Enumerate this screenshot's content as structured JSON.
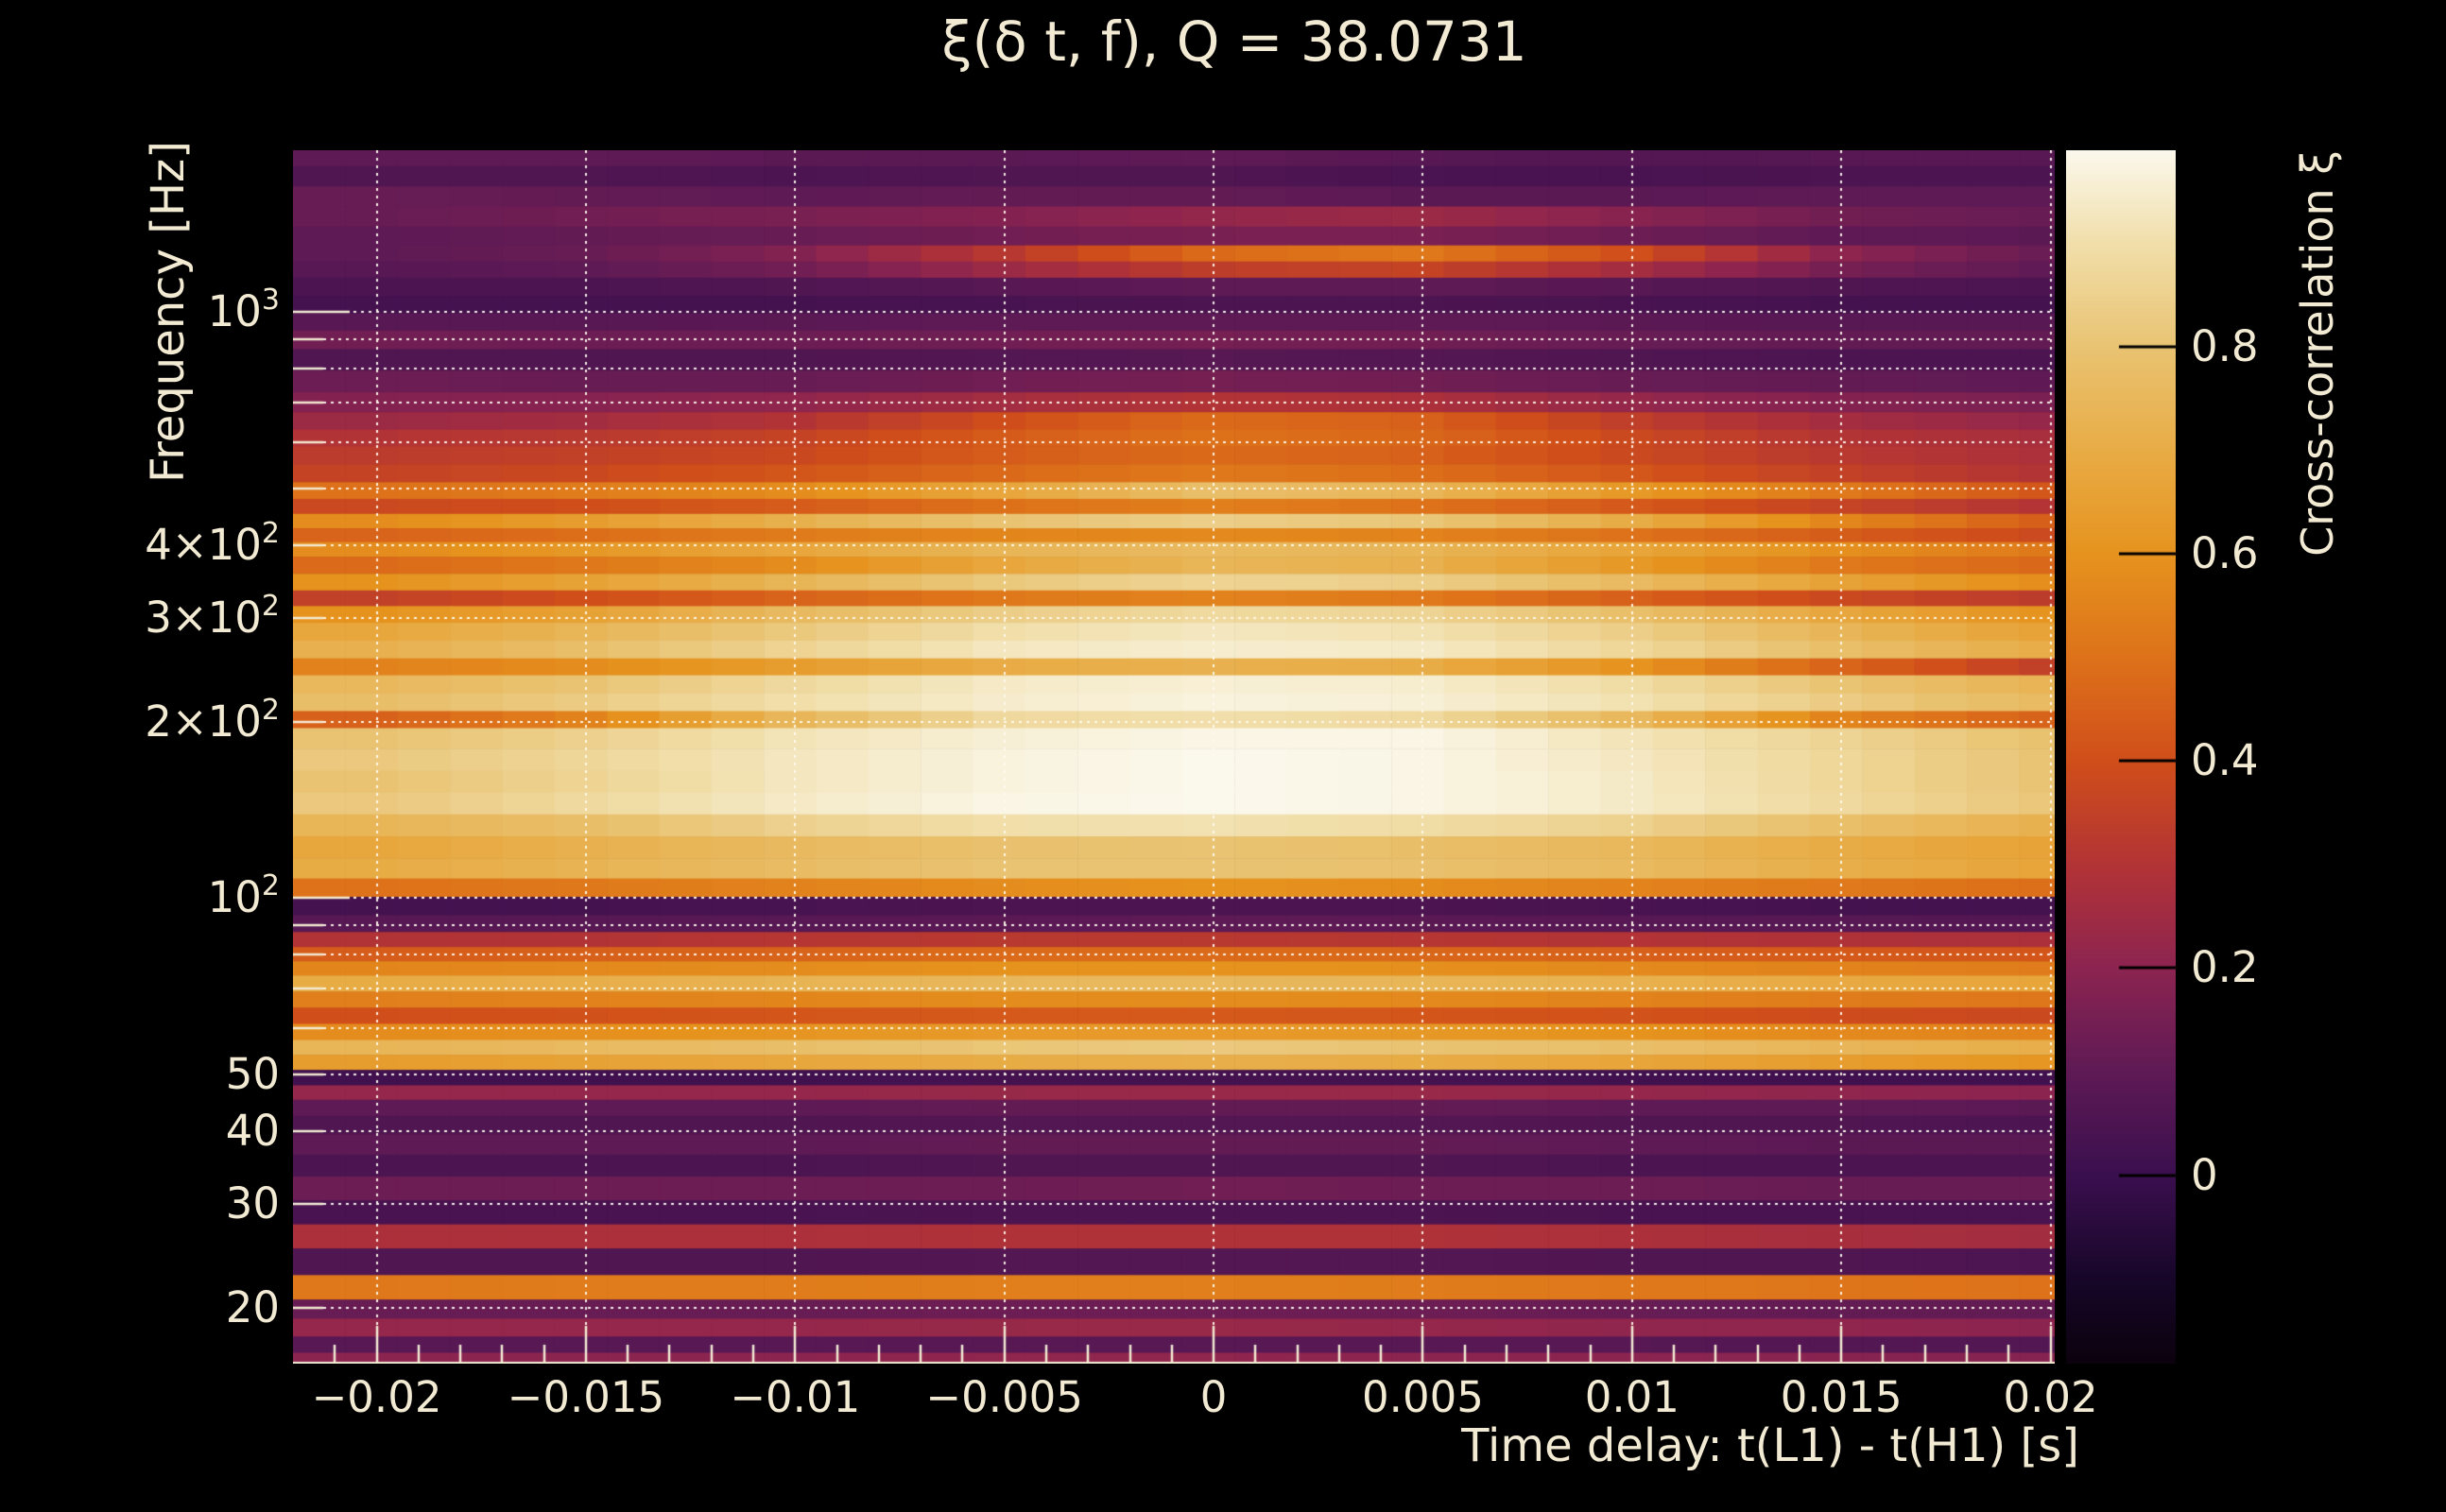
{
  "page": {
    "background": "#000000",
    "text_color": "#f2ead2"
  },
  "chart_data": {
    "type": "heatmap",
    "title": "ξ(δ t, f), Q = 38.0731",
    "xlabel": "Time delay: t(L1) - t(H1) [s]",
    "ylabel": "Frequency [Hz]",
    "colorbar_label": "Cross-correlation ξ",
    "x_scale": "linear",
    "y_scale": "log",
    "x_range_s": [
      -0.022,
      0.0201
    ],
    "y_range_hz": [
      16.04,
      1888
    ],
    "color_range": [
      -0.182,
      0.99
    ],
    "grid_style": "dotted",
    "xticks": [
      {
        "value": -0.02,
        "label": "−0.02"
      },
      {
        "value": -0.015,
        "label": "−0.015"
      },
      {
        "value": -0.01,
        "label": "−0.01"
      },
      {
        "value": -0.005,
        "label": "−0.005"
      },
      {
        "value": 0,
        "label": "0"
      },
      {
        "value": 0.005,
        "label": "0.005"
      },
      {
        "value": 0.01,
        "label": "0.01"
      },
      {
        "value": 0.015,
        "label": "0.015"
      },
      {
        "value": 0.02,
        "label": "0.02"
      }
    ],
    "yticks": [
      {
        "value": 1000,
        "label": "10^3"
      },
      {
        "value": 400,
        "label": "4×10^2"
      },
      {
        "value": 300,
        "label": "3×10^2"
      },
      {
        "value": 200,
        "label": "2×10^2"
      },
      {
        "value": 100,
        "label": "10^2"
      },
      {
        "value": 50,
        "label": "50"
      },
      {
        "value": 40,
        "label": "40"
      },
      {
        "value": 30,
        "label": "30"
      },
      {
        "value": 20,
        "label": "20"
      }
    ],
    "y_grid_hz": [
      20,
      30,
      40,
      50,
      60,
      70,
      80,
      90,
      100,
      200,
      300,
      400,
      500,
      600,
      700,
      800,
      900,
      1000
    ],
    "x_minor_tick_step_s": 0.001,
    "colorbar_ticks": [
      {
        "value": 0.8,
        "label": "0.8"
      },
      {
        "value": 0.6,
        "label": "0.6"
      },
      {
        "value": 0.4,
        "label": "0.4"
      },
      {
        "value": 0.2,
        "label": "0.2"
      },
      {
        "value": 0,
        "label": "0"
      }
    ],
    "colormap_stops": [
      [
        0.0,
        "#0b020d"
      ],
      [
        0.07,
        "#170629"
      ],
      [
        0.155,
        "#3a0f4e"
      ],
      [
        0.24,
        "#5e1a55"
      ],
      [
        0.326,
        "#8c2450"
      ],
      [
        0.41,
        "#b23336"
      ],
      [
        0.497,
        "#d04e1a"
      ],
      [
        0.58,
        "#dd711a"
      ],
      [
        0.667,
        "#e6931e"
      ],
      [
        0.75,
        "#e8ab44"
      ],
      [
        0.838,
        "#e9c372"
      ],
      [
        0.925,
        "#f1dfab"
      ],
      [
        1.0,
        "#fbf8ec"
      ]
    ],
    "x_columns_s": [
      -0.02,
      -0.015,
      -0.01,
      -0.005,
      0,
      0.005,
      0.01,
      0.015,
      0.02
    ],
    "rows": [
      {
        "f_hz": 1850,
        "xi": [
          0.1,
          0.1,
          0.09,
          0.09,
          0.1,
          0.08,
          0.07,
          0.08,
          0.08
        ]
      },
      {
        "f_hz": 1700,
        "xi": [
          0.06,
          0.06,
          0.05,
          0.06,
          0.06,
          0.04,
          0.04,
          0.05,
          0.05
        ]
      },
      {
        "f_hz": 1580,
        "xi": [
          0.12,
          0.11,
          0.1,
          0.11,
          0.11,
          0.09,
          0.09,
          0.1,
          0.1
        ]
      },
      {
        "f_hz": 1450,
        "xi": [
          0.12,
          0.14,
          0.16,
          0.18,
          0.22,
          0.24,
          0.19,
          0.14,
          0.12
        ]
      },
      {
        "f_hz": 1350,
        "xi": [
          0.1,
          0.11,
          0.12,
          0.14,
          0.16,
          0.16,
          0.13,
          0.1,
          0.09
        ]
      },
      {
        "f_hz": 1250,
        "xi": [
          0.1,
          0.12,
          0.18,
          0.32,
          0.48,
          0.52,
          0.4,
          0.2,
          0.12
        ]
      },
      {
        "f_hz": 1190,
        "xi": [
          0.08,
          0.1,
          0.14,
          0.24,
          0.34,
          0.36,
          0.26,
          0.15,
          0.1
        ]
      },
      {
        "f_hz": 1100,
        "xi": [
          0.05,
          0.05,
          0.06,
          0.08,
          0.1,
          0.1,
          0.08,
          0.06,
          0.05
        ]
      },
      {
        "f_hz": 1030,
        "xi": [
          0.03,
          0.03,
          0.03,
          0.04,
          0.05,
          0.05,
          0.04,
          0.03,
          0.03
        ]
      },
      {
        "f_hz": 960,
        "xi": [
          0.08,
          0.08,
          0.09,
          0.1,
          0.1,
          0.1,
          0.09,
          0.08,
          0.08
        ]
      },
      {
        "f_hz": 900,
        "xi": [
          0.14,
          0.13,
          0.13,
          0.14,
          0.15,
          0.14,
          0.12,
          0.11,
          0.11
        ]
      },
      {
        "f_hz": 830,
        "xi": [
          0.06,
          0.06,
          0.06,
          0.07,
          0.08,
          0.07,
          0.06,
          0.05,
          0.05
        ]
      },
      {
        "f_hz": 760,
        "xi": [
          0.13,
          0.12,
          0.12,
          0.14,
          0.15,
          0.14,
          0.12,
          0.11,
          0.1
        ]
      },
      {
        "f_hz": 700,
        "xi": [
          0.18,
          0.19,
          0.21,
          0.26,
          0.3,
          0.28,
          0.22,
          0.18,
          0.16
        ]
      },
      {
        "f_hz": 650,
        "xi": [
          0.24,
          0.26,
          0.3,
          0.4,
          0.48,
          0.45,
          0.34,
          0.26,
          0.22
        ]
      },
      {
        "f_hz": 610,
        "xi": [
          0.3,
          0.32,
          0.36,
          0.44,
          0.5,
          0.47,
          0.38,
          0.3,
          0.27
        ]
      },
      {
        "f_hz": 570,
        "xi": [
          0.33,
          0.35,
          0.38,
          0.44,
          0.48,
          0.45,
          0.38,
          0.32,
          0.28
        ]
      },
      {
        "f_hz": 530,
        "xi": [
          0.36,
          0.38,
          0.42,
          0.48,
          0.52,
          0.49,
          0.42,
          0.35,
          0.3
        ]
      },
      {
        "f_hz": 495,
        "xi": [
          0.5,
          0.53,
          0.58,
          0.68,
          0.78,
          0.74,
          0.62,
          0.52,
          0.42
        ]
      },
      {
        "f_hz": 465,
        "xi": [
          0.38,
          0.4,
          0.44,
          0.5,
          0.54,
          0.5,
          0.43,
          0.36,
          0.3
        ]
      },
      {
        "f_hz": 440,
        "xi": [
          0.58,
          0.64,
          0.72,
          0.8,
          0.84,
          0.81,
          0.7,
          0.56,
          0.44
        ]
      },
      {
        "f_hz": 415,
        "xi": [
          0.46,
          0.49,
          0.53,
          0.56,
          0.57,
          0.55,
          0.5,
          0.44,
          0.38
        ]
      },
      {
        "f_hz": 395,
        "xi": [
          0.58,
          0.62,
          0.68,
          0.74,
          0.76,
          0.74,
          0.67,
          0.59,
          0.52
        ]
      },
      {
        "f_hz": 370,
        "xi": [
          0.48,
          0.52,
          0.58,
          0.68,
          0.74,
          0.72,
          0.62,
          0.52,
          0.47
        ]
      },
      {
        "f_hz": 345,
        "xi": [
          0.6,
          0.66,
          0.74,
          0.82,
          0.86,
          0.84,
          0.76,
          0.66,
          0.58
        ]
      },
      {
        "f_hz": 325,
        "xi": [
          0.35,
          0.4,
          0.46,
          0.52,
          0.55,
          0.52,
          0.45,
          0.38,
          0.33
        ]
      },
      {
        "f_hz": 305,
        "xi": [
          0.6,
          0.66,
          0.76,
          0.84,
          0.88,
          0.86,
          0.78,
          0.68,
          0.6
        ]
      },
      {
        "f_hz": 285,
        "xi": [
          0.68,
          0.74,
          0.82,
          0.9,
          0.93,
          0.91,
          0.84,
          0.74,
          0.66
        ]
      },
      {
        "f_hz": 265,
        "xi": [
          0.72,
          0.78,
          0.86,
          0.93,
          0.95,
          0.94,
          0.87,
          0.78,
          0.7
        ]
      },
      {
        "f_hz": 248,
        "xi": [
          0.55,
          0.58,
          0.64,
          0.7,
          0.72,
          0.7,
          0.6,
          0.46,
          0.34
        ]
      },
      {
        "f_hz": 232,
        "xi": [
          0.75,
          0.8,
          0.88,
          0.94,
          0.96,
          0.95,
          0.89,
          0.8,
          0.73
        ]
      },
      {
        "f_hz": 215,
        "xi": [
          0.78,
          0.83,
          0.9,
          0.95,
          0.97,
          0.96,
          0.91,
          0.83,
          0.76
        ]
      },
      {
        "f_hz": 202,
        "xi": [
          0.45,
          0.55,
          0.75,
          0.88,
          0.9,
          0.88,
          0.75,
          0.55,
          0.45
        ]
      },
      {
        "f_hz": 188,
        "xi": [
          0.8,
          0.85,
          0.92,
          0.96,
          0.98,
          0.98,
          0.92,
          0.86,
          0.79
        ]
      },
      {
        "f_hz": 172,
        "xi": [
          0.82,
          0.87,
          0.93,
          0.97,
          0.99,
          0.98,
          0.93,
          0.87,
          0.8
        ]
      },
      {
        "f_hz": 158,
        "xi": [
          0.8,
          0.86,
          0.93,
          0.97,
          0.99,
          0.98,
          0.94,
          0.87,
          0.8
        ]
      },
      {
        "f_hz": 145,
        "xi": [
          0.82,
          0.88,
          0.94,
          0.98,
          0.99,
          0.98,
          0.94,
          0.88,
          0.81
        ]
      },
      {
        "f_hz": 133,
        "xi": [
          0.74,
          0.78,
          0.85,
          0.9,
          0.91,
          0.89,
          0.85,
          0.78,
          0.72
        ]
      },
      {
        "f_hz": 122,
        "xi": [
          0.68,
          0.72,
          0.76,
          0.79,
          0.8,
          0.78,
          0.75,
          0.7,
          0.66
        ]
      },
      {
        "f_hz": 112,
        "xi": [
          0.7,
          0.73,
          0.77,
          0.8,
          0.8,
          0.79,
          0.76,
          0.71,
          0.67
        ]
      },
      {
        "f_hz": 104,
        "xi": [
          0.5,
          0.52,
          0.55,
          0.58,
          0.6,
          0.58,
          0.55,
          0.52,
          0.49
        ]
      },
      {
        "f_hz": 97,
        "xi": [
          0.03,
          0.03,
          0.04,
          0.05,
          0.05,
          0.05,
          0.04,
          0.03,
          0.03
        ]
      },
      {
        "f_hz": 90,
        "xi": [
          0.08,
          0.08,
          0.08,
          0.09,
          0.1,
          0.09,
          0.08,
          0.08,
          0.07
        ]
      },
      {
        "f_hz": 85,
        "xi": [
          0.3,
          0.3,
          0.31,
          0.32,
          0.32,
          0.31,
          0.3,
          0.29,
          0.28
        ]
      },
      {
        "f_hz": 80,
        "xi": [
          0.44,
          0.45,
          0.46,
          0.48,
          0.48,
          0.47,
          0.45,
          0.43,
          0.42
        ]
      },
      {
        "f_hz": 76,
        "xi": [
          0.56,
          0.57,
          0.58,
          0.6,
          0.6,
          0.59,
          0.57,
          0.55,
          0.53
        ]
      },
      {
        "f_hz": 71.5,
        "xi": [
          0.7,
          0.71,
          0.73,
          0.75,
          0.75,
          0.74,
          0.72,
          0.69,
          0.67
        ]
      },
      {
        "f_hz": 67,
        "xi": [
          0.54,
          0.55,
          0.56,
          0.58,
          0.58,
          0.57,
          0.55,
          0.53,
          0.51
        ]
      },
      {
        "f_hz": 63,
        "xi": [
          0.4,
          0.41,
          0.42,
          0.43,
          0.43,
          0.42,
          0.41,
          0.39,
          0.38
        ]
      },
      {
        "f_hz": 59,
        "xi": [
          0.58,
          0.59,
          0.61,
          0.63,
          0.63,
          0.62,
          0.6,
          0.57,
          0.55
        ]
      },
      {
        "f_hz": 55.5,
        "xi": [
          0.74,
          0.76,
          0.78,
          0.81,
          0.82,
          0.8,
          0.78,
          0.74,
          0.71
        ]
      },
      {
        "f_hz": 52.5,
        "xi": [
          0.64,
          0.66,
          0.68,
          0.7,
          0.71,
          0.7,
          0.67,
          0.64,
          0.61
        ]
      },
      {
        "f_hz": 49.3,
        "xi": [
          0.02,
          0.02,
          0.02,
          0.03,
          0.03,
          0.03,
          0.02,
          0.02,
          0.02
        ]
      },
      {
        "f_hz": 46.5,
        "xi": [
          0.22,
          0.22,
          0.22,
          0.23,
          0.23,
          0.23,
          0.22,
          0.21,
          0.2
        ]
      },
      {
        "f_hz": 44,
        "xi": [
          0.1,
          0.1,
          0.1,
          0.11,
          0.11,
          0.11,
          0.1,
          0.1,
          0.09
        ]
      },
      {
        "f_hz": 41,
        "xi": [
          0.06,
          0.06,
          0.06,
          0.07,
          0.07,
          0.07,
          0.06,
          0.06,
          0.05
        ]
      },
      {
        "f_hz": 38,
        "xi": [
          0.1,
          0.1,
          0.1,
          0.11,
          0.11,
          0.11,
          0.1,
          0.09,
          0.09
        ]
      },
      {
        "f_hz": 35,
        "xi": [
          0.05,
          0.05,
          0.05,
          0.06,
          0.06,
          0.06,
          0.05,
          0.05,
          0.05
        ]
      },
      {
        "f_hz": 32,
        "xi": [
          0.13,
          0.13,
          0.13,
          0.13,
          0.14,
          0.13,
          0.13,
          0.12,
          0.12
        ]
      },
      {
        "f_hz": 29,
        "xi": [
          0.04,
          0.04,
          0.04,
          0.05,
          0.05,
          0.05,
          0.04,
          0.04,
          0.04
        ]
      },
      {
        "f_hz": 26.5,
        "xi": [
          0.28,
          0.28,
          0.28,
          0.29,
          0.29,
          0.29,
          0.28,
          0.27,
          0.26
        ]
      },
      {
        "f_hz": 24,
        "xi": [
          0.06,
          0.06,
          0.06,
          0.07,
          0.07,
          0.07,
          0.06,
          0.06,
          0.05
        ]
      },
      {
        "f_hz": 21.5,
        "xi": [
          0.52,
          0.53,
          0.53,
          0.54,
          0.54,
          0.53,
          0.52,
          0.51,
          0.5
        ]
      },
      {
        "f_hz": 19.8,
        "xi": [
          0.12,
          0.12,
          0.12,
          0.13,
          0.13,
          0.13,
          0.12,
          0.11,
          0.11
        ]
      },
      {
        "f_hz": 18.5,
        "xi": [
          0.22,
          0.22,
          0.22,
          0.23,
          0.23,
          0.22,
          0.21,
          0.21,
          0.2
        ]
      },
      {
        "f_hz": 17.2,
        "xi": [
          0.08,
          0.08,
          0.08,
          0.08,
          0.08,
          0.08,
          0.08,
          0.07,
          0.07
        ]
      },
      {
        "f_hz": 16.3,
        "xi": [
          0.2,
          0.2,
          0.2,
          0.21,
          0.21,
          0.2,
          0.2,
          0.19,
          0.19
        ]
      }
    ]
  }
}
